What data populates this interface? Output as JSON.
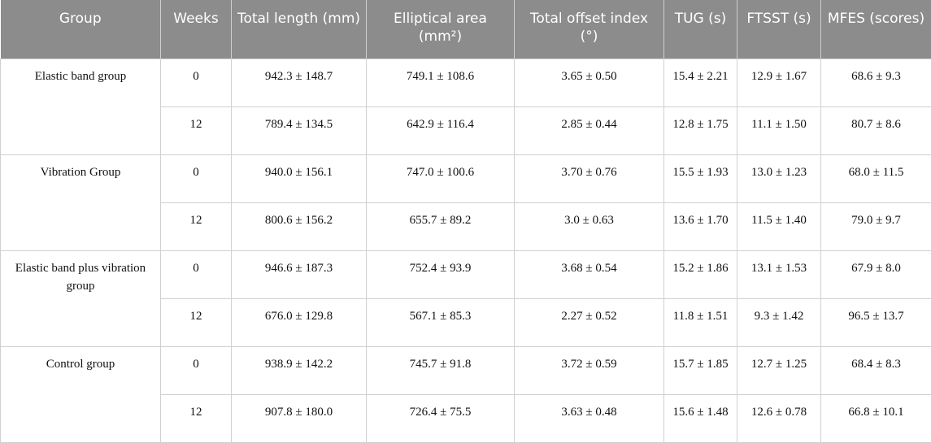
{
  "table": {
    "header": [
      "Group",
      "Weeks",
      "Total length (mm)",
      "Elliptical area (mm²)",
      "Total offset index (°)",
      "TUG (s)",
      "FTSST (s)",
      "MFES (scores)"
    ],
    "groups": [
      {
        "name": "Elastic band group",
        "rows": [
          [
            "0",
            "942.3 ± 148.7",
            "749.1 ± 108.6",
            "3.65 ± 0.50",
            "15.4 ± 2.21",
            "12.9 ± 1.67",
            "68.6 ± 9.3"
          ],
          [
            "12",
            "789.4 ± 134.5",
            "642.9 ± 116.4",
            "2.85 ± 0.44",
            "12.8 ± 1.75",
            "11.1 ± 1.50",
            "80.7 ± 8.6"
          ]
        ]
      },
      {
        "name": "Vibration Group",
        "rows": [
          [
            "0",
            "940.0 ± 156.1",
            "747.0 ± 100.6",
            "3.70 ± 0.76",
            "15.5 ± 1.93",
            "13.0 ± 1.23",
            "68.0 ± 11.5"
          ],
          [
            "12",
            "800.6 ± 156.2",
            "655.7 ± 89.2",
            "3.0 ± 0.63",
            "13.6 ± 1.70",
            "11.5 ± 1.40",
            "79.0 ± 9.7"
          ]
        ]
      },
      {
        "name": "Elastic band plus vibration group",
        "rows": [
          [
            "0",
            "946.6 ± 187.3",
            "752.4 ± 93.9",
            "3.68 ± 0.54",
            "15.2 ± 1.86",
            "13.1 ± 1.53",
            "67.9 ± 8.0"
          ],
          [
            "12",
            "676.0 ± 129.8",
            "567.1 ± 85.3",
            "2.27 ± 0.52",
            "11.8 ± 1.51",
            "9.3 ± 1.42",
            "96.5 ± 13.7"
          ]
        ]
      },
      {
        "name": "Control group",
        "rows": [
          [
            "0",
            "938.9 ± 142.2",
            "745.7 ± 91.8",
            "3.72 ± 0.59",
            "15.7 ± 1.85",
            "12.7 ± 1.25",
            "68.4 ± 8.3"
          ],
          [
            "12",
            "907.8 ± 180.0",
            "726.4 ± 75.5",
            "3.63 ± 0.48",
            "15.6 ± 1.48",
            "12.6 ± 0.78",
            "66.8 ± 10.1"
          ]
        ]
      }
    ]
  }
}
